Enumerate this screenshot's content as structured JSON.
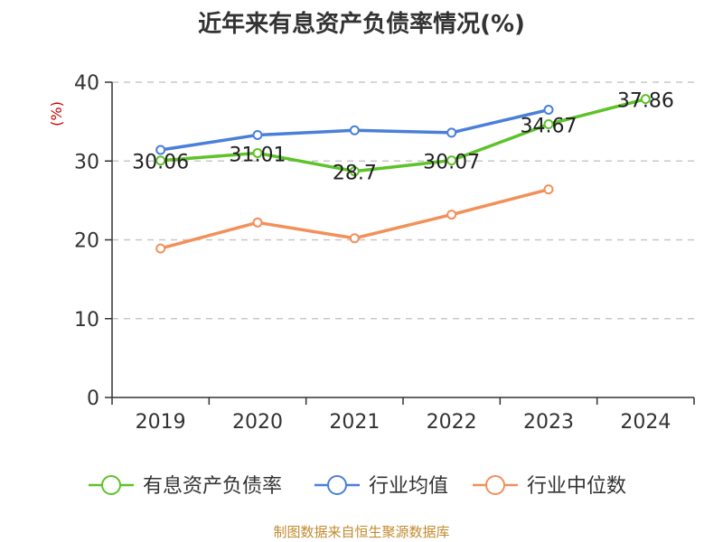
{
  "title": "近年来有息资产负债率情况(%)",
  "source": "制图数据来自恒生聚源数据库",
  "chart_data": {
    "type": "line",
    "title": "近年来有息资产负债率情况(%)",
    "ylabel": "(%)",
    "xlabel": "",
    "categories": [
      "2019",
      "2020",
      "2021",
      "2022",
      "2023",
      "2024"
    ],
    "ylim": [
      0,
      40
    ],
    "yticks": [
      0,
      10,
      20,
      30,
      40
    ],
    "grid": true,
    "legend_position": "bottom",
    "series": [
      {
        "name": "有息资产负债率",
        "color": "#5ec22a",
        "show_labels": true,
        "values": [
          30.06,
          31.01,
          28.7,
          30.07,
          34.67,
          37.86
        ]
      },
      {
        "name": "行业均值",
        "color": "#4a7fd9",
        "show_labels": false,
        "values": [
          31.4,
          33.3,
          33.9,
          33.6,
          36.5,
          null
        ]
      },
      {
        "name": "行业中位数",
        "color": "#f2905a",
        "show_labels": false,
        "values": [
          18.9,
          22.2,
          20.2,
          23.2,
          26.4,
          null
        ]
      }
    ]
  }
}
